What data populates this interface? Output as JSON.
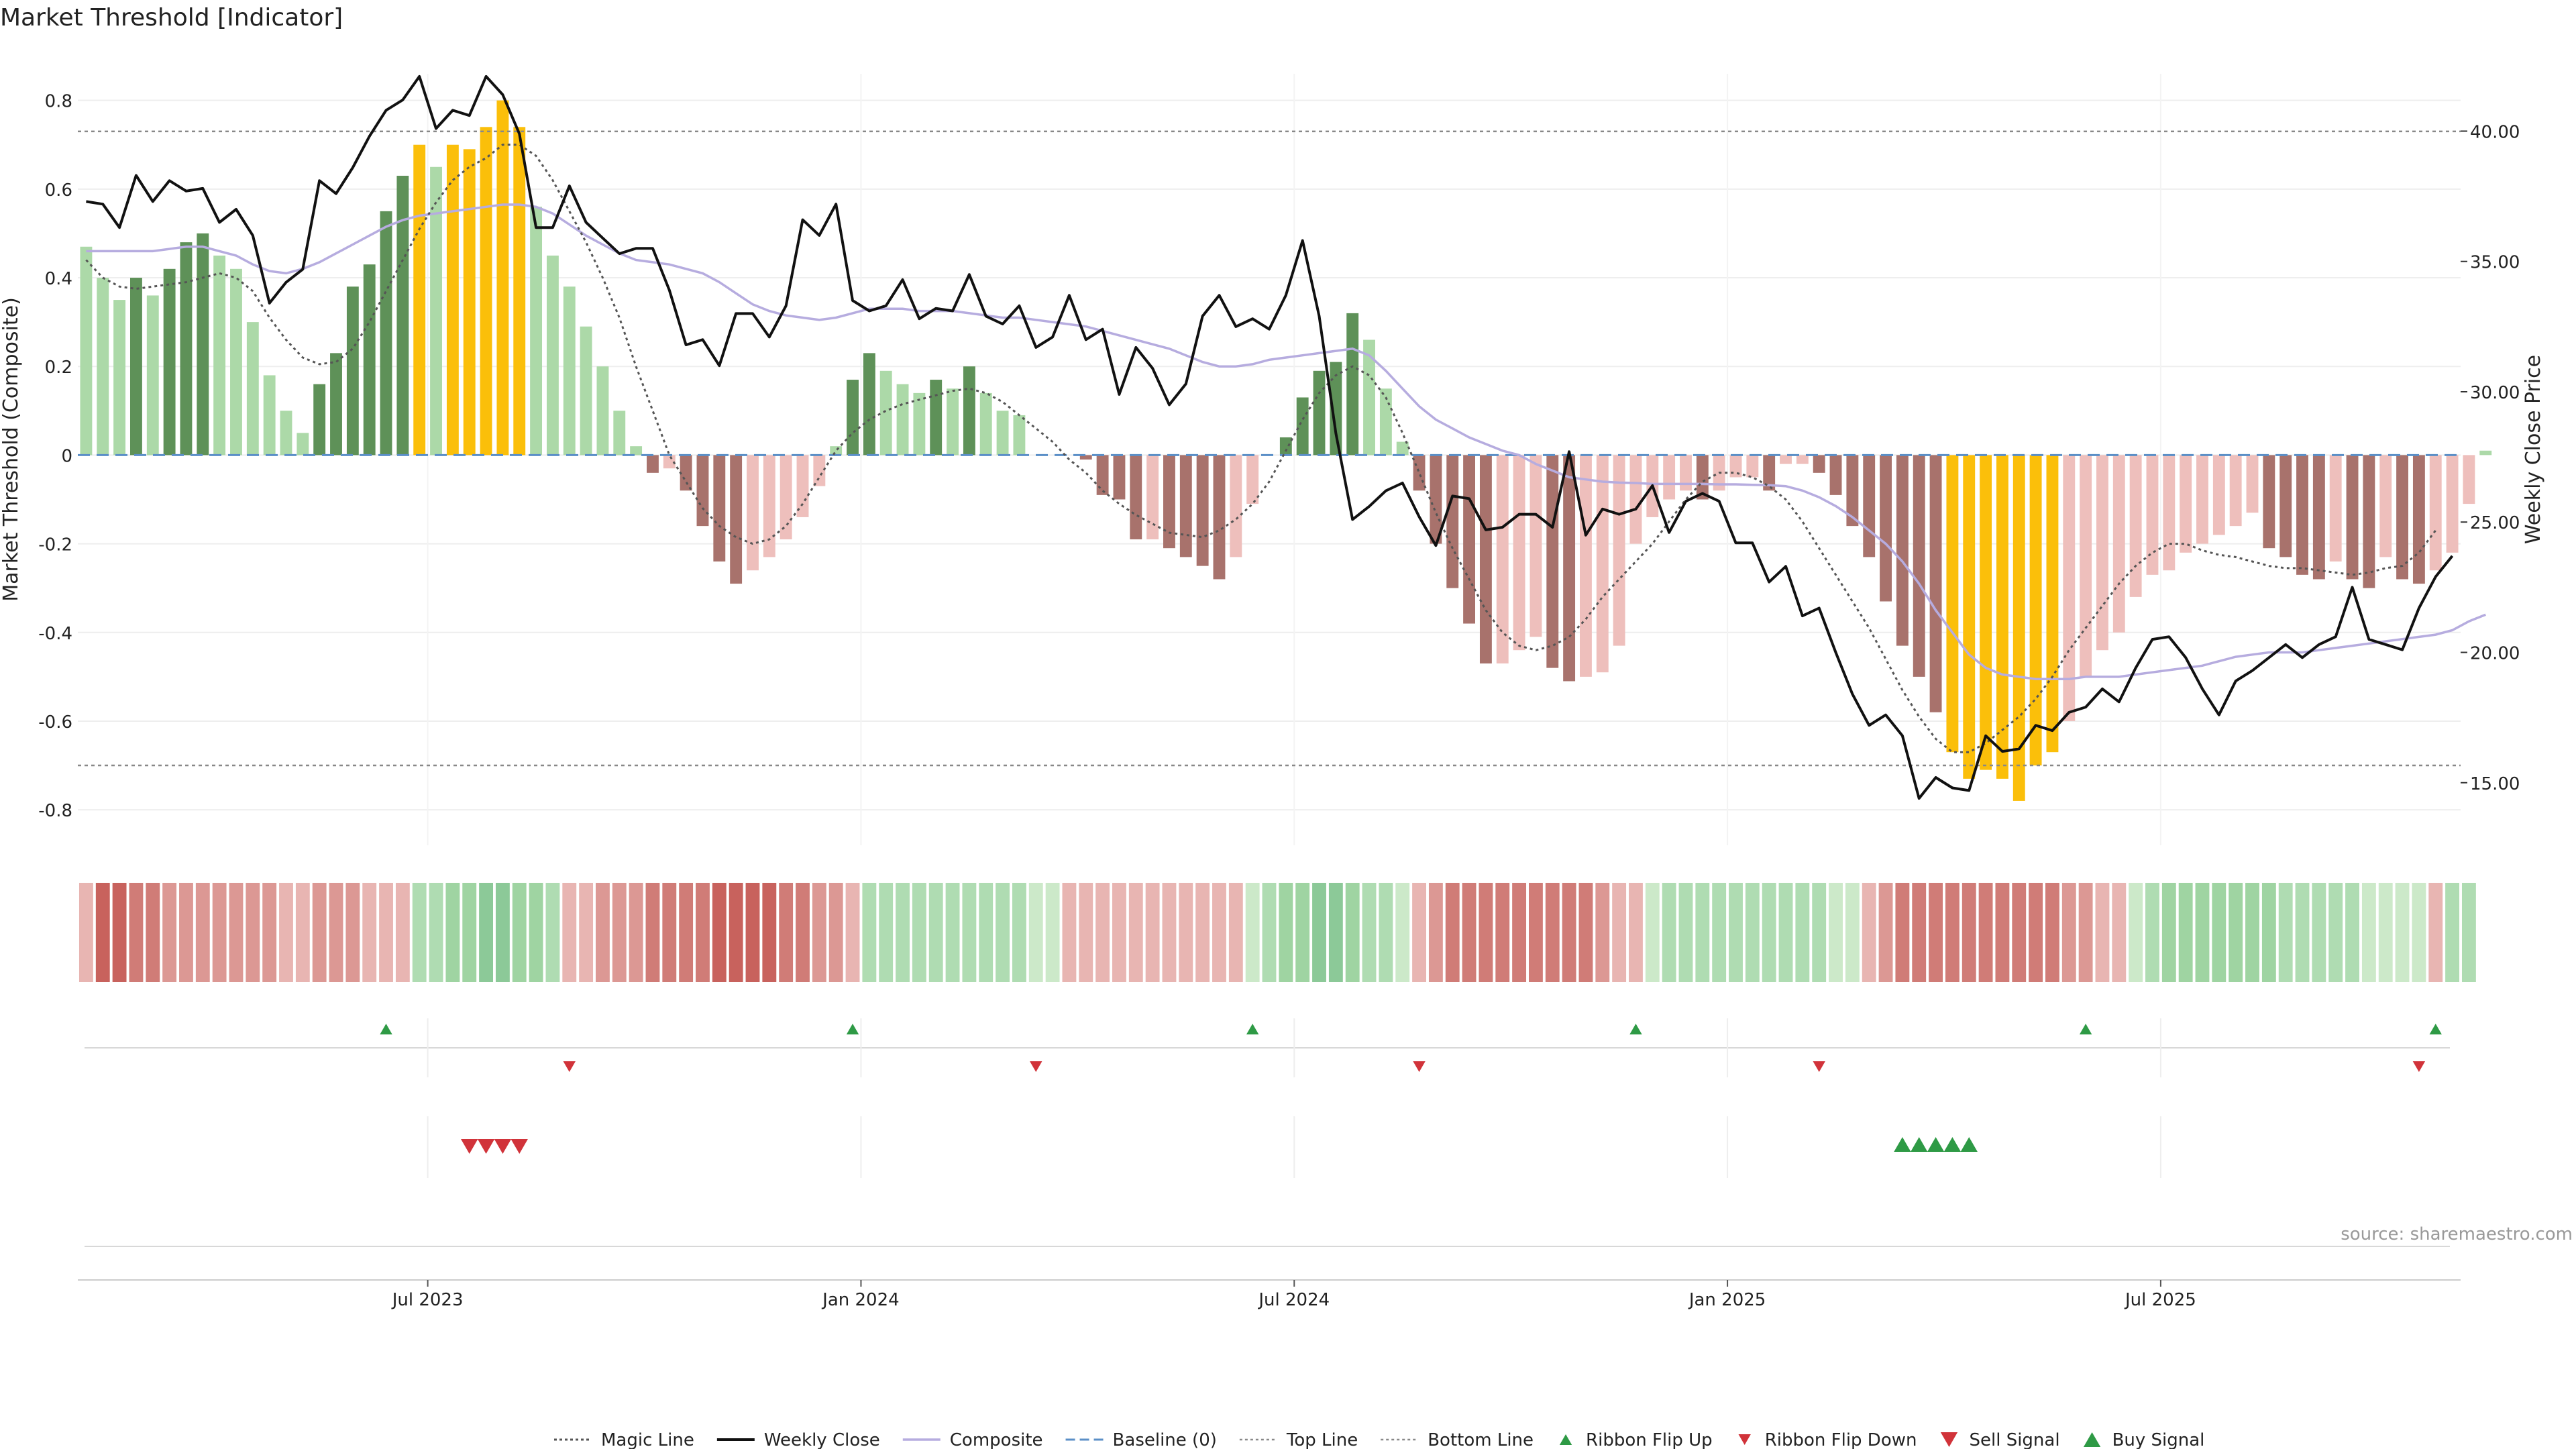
{
  "chart_data": {
    "type": "bar+line",
    "title": "Market Threshold [Indicator]",
    "ylabel": "Market Threshold (Composite)",
    "y2label": "Weekly Close Price",
    "ylim": [
      -0.88,
      0.86
    ],
    "y2lim": [
      12.6,
      42.2
    ],
    "yticks": [
      "0.8",
      "0.6",
      "0.4",
      "0.2",
      "0",
      "-0.2",
      "-0.4",
      "-0.6",
      "-0.8"
    ],
    "y2ticks": [
      "40.00",
      "35.00",
      "30.00",
      "25.00",
      "20.00",
      "15.00"
    ],
    "xlim": [
      0,
      143
    ],
    "x_ticks": [
      {
        "week": 21,
        "label": "Jul 2023"
      },
      {
        "week": 47,
        "label": "Jan 2024"
      },
      {
        "week": 73,
        "label": "Jul 2024"
      },
      {
        "week": 99,
        "label": "Jan 2025"
      },
      {
        "week": 125,
        "label": "Jul 2025"
      }
    ],
    "top_line": 0.73,
    "bottom_line": -0.7,
    "source": "source: sharemaestro.com",
    "bar_colors": {
      "pos_dark": "#5e9158",
      "pos_light": "#acd9a8",
      "neg_dark": "#a8726c",
      "neg_light": "#eebfbc",
      "extreme": "#fbbf0a"
    },
    "line_colors": {
      "magic": "#555555",
      "close": "#111111",
      "composite": "#b6acdf",
      "baseline": "#5b8fc7",
      "bounds": "#888888"
    },
    "composite_bars": [
      0.47,
      0.4,
      0.35,
      0.4,
      0.36,
      0.42,
      0.48,
      0.5,
      0.45,
      0.42,
      0.3,
      0.18,
      0.1,
      0.05,
      0.16,
      0.23,
      0.38,
      0.43,
      0.55,
      0.63,
      0.7,
      0.65,
      0.7,
      0.69,
      0.74,
      0.8,
      0.74,
      0.56,
      0.45,
      0.38,
      0.29,
      0.2,
      0.1,
      0.02,
      -0.04,
      -0.03,
      -0.08,
      -0.16,
      -0.24,
      -0.29,
      -0.26,
      -0.23,
      -0.19,
      -0.14,
      -0.07,
      0.02,
      0.17,
      0.23,
      0.19,
      0.16,
      0.14,
      0.17,
      0.15,
      0.2,
      0.14,
      0.1,
      0.09,
      0,
      0,
      0,
      -0.01,
      -0.09,
      -0.1,
      -0.19,
      -0.19,
      -0.21,
      -0.23,
      -0.25,
      -0.28,
      -0.23,
      -0.11,
      0,
      0.04,
      0.13,
      0.19,
      0.21,
      0.32,
      0.26,
      0.15,
      0.03,
      -0.08,
      -0.2,
      -0.3,
      -0.38,
      -0.47,
      -0.47,
      -0.44,
      -0.41,
      -0.48,
      -0.51,
      -0.5,
      -0.49,
      -0.43,
      -0.2,
      -0.14,
      -0.1,
      -0.08,
      -0.1,
      -0.08,
      -0.05,
      -0.05,
      -0.08,
      -0.02,
      -0.02,
      -0.04,
      -0.09,
      -0.16,
      -0.23,
      -0.33,
      -0.43,
      -0.5,
      -0.58,
      -0.67,
      -0.73,
      -0.71,
      -0.73,
      -0.78,
      -0.7,
      -0.67,
      -0.6,
      -0.5,
      -0.44,
      -0.4,
      -0.32,
      -0.27,
      -0.26,
      -0.22,
      -0.2,
      -0.18,
      -0.16,
      -0.13,
      -0.21,
      -0.23,
      -0.27,
      -0.28,
      -0.24,
      -0.28,
      -0.3,
      -0.23,
      -0.28,
      -0.29,
      -0.26,
      -0.22,
      -0.11,
      0.01
    ],
    "weekly_close": [
      37.3,
      37.2,
      36.3,
      38.3,
      37.3,
      38.1,
      37.7,
      37.8,
      36.5,
      37,
      36,
      33.4,
      34.2,
      34.7,
      38.1,
      37.6,
      38.6,
      39.8,
      40.8,
      41.2,
      42.1,
      40.1,
      40.8,
      40.6,
      42.1,
      41.4,
      39.9,
      36.3,
      36.3,
      37.9,
      36.5,
      35.9,
      35.3,
      35.5,
      35.5,
      33.9,
      31.8,
      32,
      31,
      33,
      33,
      32.1,
      33.3,
      36.6,
      36,
      37.2,
      33.5,
      33.1,
      33.3,
      34.3,
      32.8,
      33.2,
      33.1,
      34.5,
      32.9,
      32.6,
      33.3,
      31.7,
      32.1,
      33.7,
      32,
      32.4,
      29.9,
      31.7,
      30.9,
      29.5,
      30.3,
      32.9,
      33.7,
      32.5,
      32.8,
      32.4,
      33.7,
      35.8,
      32.9,
      28.4,
      25.1,
      25.6,
      26.2,
      26.5,
      25.2,
      24.1,
      26,
      25.9,
      24.7,
      24.8,
      25.3,
      25.3,
      24.8,
      27.7,
      24.5,
      25.5,
      25.3,
      25.5,
      26.4,
      24.6,
      25.8,
      26.1,
      25.8,
      24.2,
      24.2,
      22.7,
      23.3,
      21.4,
      21.7,
      20,
      18.4,
      17.2,
      17.6,
      16.8,
      14.4,
      15.2,
      14.8,
      14.7,
      16.8,
      16.2,
      16.3,
      17.2,
      17,
      17.7,
      17.9,
      18.6,
      18.1,
      19.4,
      20.5,
      20.6,
      19.8,
      18.6,
      17.6,
      18.9,
      19.3,
      19.8,
      20.3,
      19.8,
      20.3,
      20.6,
      22.5,
      20.5,
      20.3,
      20.1,
      21.7,
      22.9,
      23.7
    ],
    "composite_line": [
      0.46,
      0.46,
      0.46,
      0.46,
      0.46,
      0.465,
      0.47,
      0.47,
      0.46,
      0.45,
      0.43,
      0.415,
      0.41,
      0.42,
      0.435,
      0.455,
      0.475,
      0.495,
      0.515,
      0.53,
      0.54,
      0.545,
      0.55,
      0.555,
      0.56,
      0.565,
      0.565,
      0.56,
      0.545,
      0.52,
      0.495,
      0.475,
      0.455,
      0.44,
      0.435,
      0.43,
      0.42,
      0.41,
      0.39,
      0.365,
      0.34,
      0.325,
      0.315,
      0.31,
      0.305,
      0.31,
      0.32,
      0.33,
      0.33,
      0.33,
      0.325,
      0.325,
      0.325,
      0.32,
      0.315,
      0.31,
      0.31,
      0.305,
      0.3,
      0.295,
      0.29,
      0.28,
      0.27,
      0.26,
      0.25,
      0.24,
      0.225,
      0.21,
      0.2,
      0.2,
      0.205,
      0.215,
      0.22,
      0.225,
      0.23,
      0.235,
      0.24,
      0.225,
      0.19,
      0.15,
      0.11,
      0.08,
      0.06,
      0.04,
      0.025,
      0.01,
      0,
      -0.02,
      -0.035,
      -0.05,
      -0.055,
      -0.06,
      -0.062,
      -0.063,
      -0.065,
      -0.065,
      -0.065,
      -0.065,
      -0.066,
      -0.066,
      -0.067,
      -0.068,
      -0.07,
      -0.08,
      -0.095,
      -0.115,
      -0.14,
      -0.17,
      -0.2,
      -0.24,
      -0.29,
      -0.35,
      -0.4,
      -0.45,
      -0.48,
      -0.495,
      -0.5,
      -0.505,
      -0.505,
      -0.505,
      -0.5,
      -0.5,
      -0.5,
      -0.495,
      -0.49,
      -0.485,
      -0.48,
      -0.475,
      -0.465,
      -0.455,
      -0.45,
      -0.445,
      -0.445,
      -0.445,
      -0.44,
      -0.435,
      -0.43,
      -0.425,
      -0.42,
      -0.415,
      -0.41,
      -0.405,
      -0.395,
      -0.375,
      -0.36
    ],
    "magic_line": [
      0.44,
      0.4,
      0.38,
      0.375,
      0.38,
      0.385,
      0.39,
      0.4,
      0.41,
      0.4,
      0.37,
      0.31,
      0.26,
      0.22,
      0.205,
      0.21,
      0.24,
      0.3,
      0.37,
      0.44,
      0.51,
      0.57,
      0.62,
      0.65,
      0.67,
      0.7,
      0.7,
      0.675,
      0.62,
      0.55,
      0.48,
      0.4,
      0.31,
      0.2,
      0.1,
      0,
      -0.06,
      -0.12,
      -0.16,
      -0.185,
      -0.2,
      -0.19,
      -0.16,
      -0.11,
      -0.05,
      0.01,
      0.05,
      0.08,
      0.1,
      0.115,
      0.125,
      0.135,
      0.145,
      0.15,
      0.14,
      0.12,
      0.09,
      0.06,
      0.03,
      -0.01,
      -0.04,
      -0.08,
      -0.11,
      -0.135,
      -0.155,
      -0.175,
      -0.18,
      -0.185,
      -0.17,
      -0.145,
      -0.11,
      -0.06,
      0.01,
      0.08,
      0.14,
      0.18,
      0.2,
      0.18,
      0.13,
      0.05,
      -0.04,
      -0.13,
      -0.21,
      -0.28,
      -0.35,
      -0.4,
      -0.43,
      -0.44,
      -0.43,
      -0.41,
      -0.37,
      -0.32,
      -0.28,
      -0.24,
      -0.2,
      -0.15,
      -0.1,
      -0.06,
      -0.04,
      -0.04,
      -0.05,
      -0.07,
      -0.1,
      -0.15,
      -0.21,
      -0.27,
      -0.33,
      -0.39,
      -0.46,
      -0.53,
      -0.59,
      -0.64,
      -0.67,
      -0.67,
      -0.65,
      -0.62,
      -0.59,
      -0.55,
      -0.5,
      -0.44,
      -0.39,
      -0.34,
      -0.29,
      -0.25,
      -0.22,
      -0.2,
      -0.2,
      -0.215,
      -0.225,
      -0.23,
      -0.24,
      -0.25,
      -0.255,
      -0.255,
      -0.26,
      -0.265,
      -0.27,
      -0.265,
      -0.255,
      -0.25,
      -0.22,
      -0.17
    ],
    "ribbon": [
      1,
      4,
      4,
      3,
      3,
      2,
      2,
      2,
      2,
      2,
      2,
      2,
      1,
      1,
      2,
      2,
      2,
      1,
      1,
      1,
      6,
      6,
      7,
      7,
      8,
      8,
      7,
      7,
      6,
      1,
      1,
      2,
      2,
      2,
      3,
      3,
      3,
      3,
      4,
      4,
      4,
      4,
      3,
      3,
      2,
      2,
      1,
      6,
      6,
      6,
      6,
      6,
      6,
      6,
      6,
      6,
      6,
      5,
      5,
      1,
      1,
      1,
      1,
      1,
      1,
      1,
      1,
      1,
      1,
      1,
      5,
      6,
      7,
      7,
      8,
      8,
      7,
      6,
      6,
      5,
      1,
      2,
      3,
      3,
      3,
      3,
      3,
      3,
      3,
      3,
      3,
      2,
      1,
      1,
      5,
      6,
      6,
      6,
      6,
      6,
      6,
      6,
      6,
      6,
      6,
      5,
      5,
      1,
      2,
      3,
      3,
      3,
      3,
      3,
      3,
      3,
      3,
      3,
      3,
      2,
      2,
      1,
      1,
      5,
      6,
      7,
      7,
      7,
      7,
      7,
      7,
      7,
      6,
      6,
      6,
      6,
      6,
      5,
      5,
      5,
      5,
      1,
      6,
      6
    ],
    "ribbon_colors": [
      "#f3d4d2",
      "#e8b5b2",
      "#dc9894",
      "#d07c77",
      "#c8625d",
      "#cce9c9",
      "#afdcb2",
      "#9fd4a2",
      "#8cc998"
    ],
    "ribbon_flip_up": [
      18,
      46,
      70,
      93,
      120,
      141
    ],
    "ribbon_flip_down": [
      29,
      57,
      80,
      104,
      140
    ],
    "sell_signal": [
      23,
      24,
      25,
      26
    ],
    "buy_signal": [
      109,
      110,
      111,
      112,
      113
    ],
    "legend": [
      {
        "label": "Magic Line",
        "kind": "magic"
      },
      {
        "label": "Weekly Close",
        "kind": "close"
      },
      {
        "label": "Composite",
        "kind": "composite"
      },
      {
        "label": "Baseline (0)",
        "kind": "baseline"
      },
      {
        "label": "Top Line",
        "kind": "top"
      },
      {
        "label": "Bottom Line",
        "kind": "bottom"
      },
      {
        "label": "Ribbon Flip Up",
        "kind": "flip-up"
      },
      {
        "label": "Ribbon Flip Down",
        "kind": "flip-down"
      },
      {
        "label": "Sell Signal",
        "kind": "sell"
      },
      {
        "label": "Buy Signal",
        "kind": "buy"
      }
    ]
  }
}
